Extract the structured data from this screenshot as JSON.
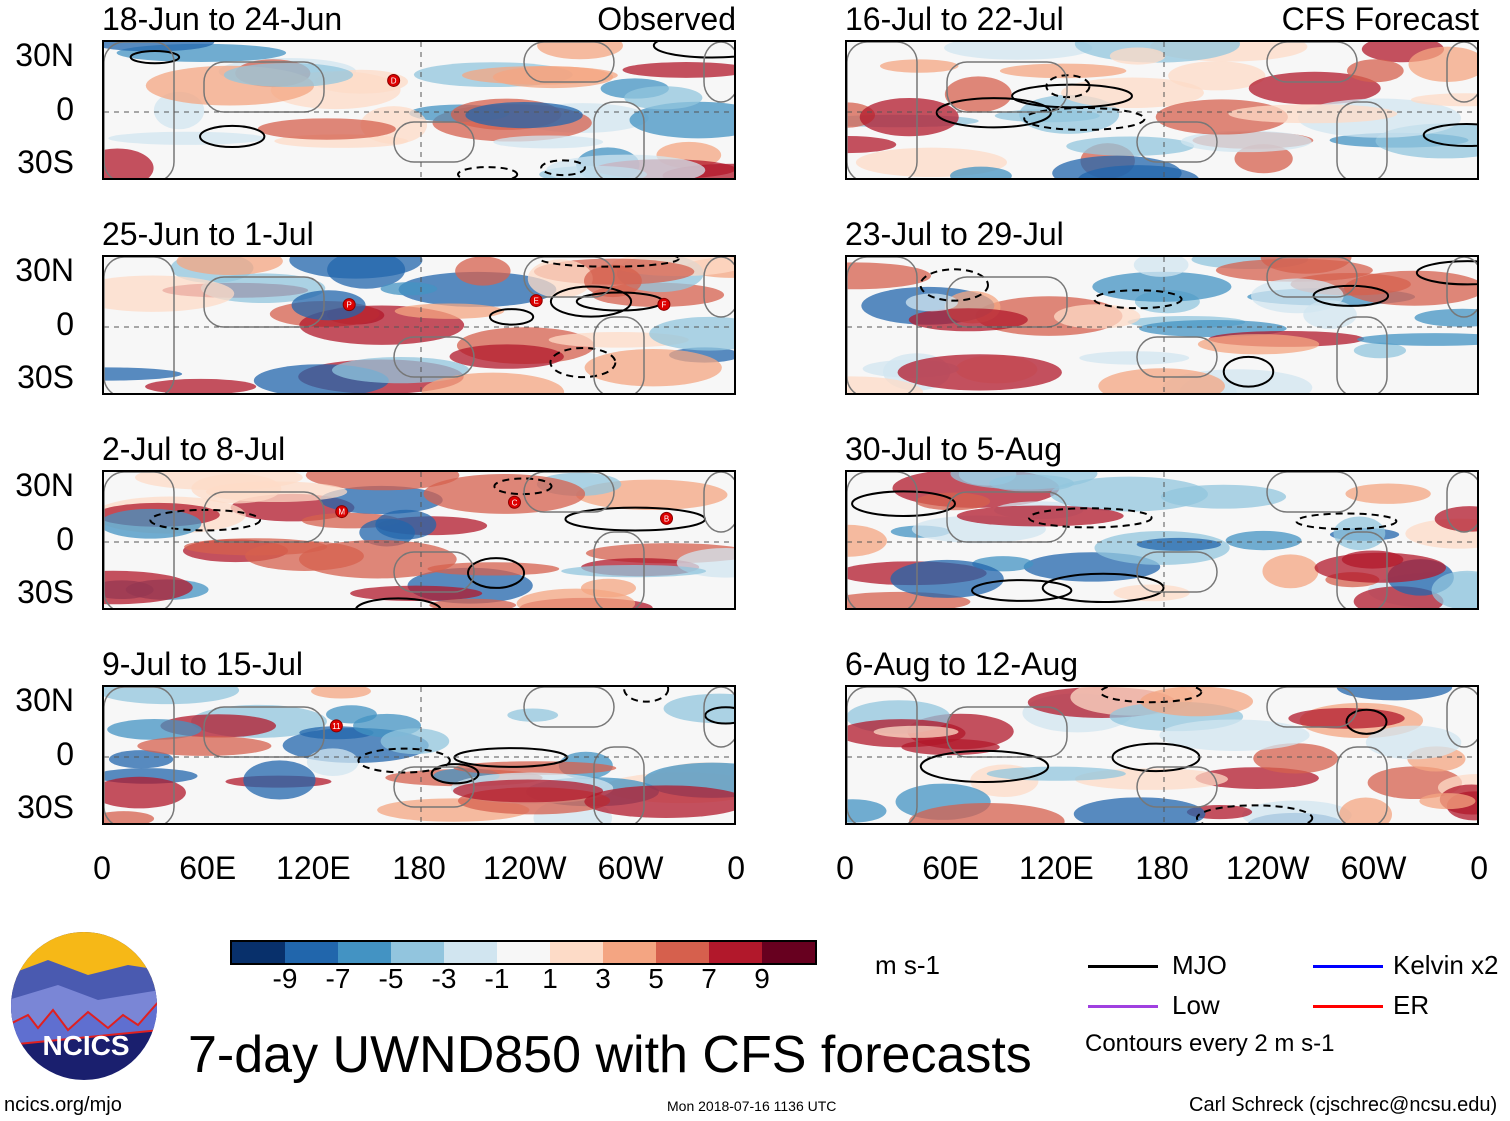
{
  "panels_left": [
    {
      "title": "18-Jun to 24-Jun",
      "label": "Observed",
      "storms": [
        "D"
      ]
    },
    {
      "title": "25-Jun to 1-Jul",
      "storms": [
        "P",
        "E",
        "F"
      ]
    },
    {
      "title": "2-Jul to 8-Jul",
      "storms": [
        "M",
        "C",
        "B"
      ]
    },
    {
      "title": "9-Jul to 15-Jul",
      "storms": [
        "11"
      ]
    }
  ],
  "panels_right": [
    {
      "title": "16-Jul to 22-Jul",
      "label": "CFS Forecast"
    },
    {
      "title": "23-Jul to 29-Jul"
    },
    {
      "title": "30-Jul to 5-Aug"
    },
    {
      "title": "6-Aug to 12-Aug"
    }
  ],
  "lat_labels": [
    "30N",
    "0",
    "30S"
  ],
  "lon_labels": [
    "0",
    "60E",
    "120E",
    "180",
    "120W",
    "60W",
    "0"
  ],
  "colorbar": {
    "colors": [
      "#08306b",
      "#2166ac",
      "#4393c3",
      "#92c5de",
      "#d1e5f0",
      "#f7f7f7",
      "#fddbc7",
      "#f4a582",
      "#d6604d",
      "#b2182b",
      "#67001f"
    ],
    "ticks": [
      "-9",
      "-7",
      "-5",
      "-3",
      "-1",
      "1",
      "3",
      "5",
      "7",
      "9"
    ],
    "units": "m s-1"
  },
  "legend": {
    "items": [
      {
        "label": "MJO",
        "color": "#000000"
      },
      {
        "label": "Kelvin x2",
        "color": "#0000ff"
      },
      {
        "label": "Low",
        "color": "#a040e0"
      },
      {
        "label": "ER",
        "color": "#ff0000"
      }
    ],
    "contours": "Contours every 2 m s-1"
  },
  "title": "7-day UWND850 with CFS forecasts",
  "logo_text": "NCICS",
  "footer": {
    "left": "ncics.org/mjo",
    "center": "Mon 2018-07-16 1136 UTC",
    "right": "Carl Schreck (cjschrec@ncsu.edu)"
  }
}
